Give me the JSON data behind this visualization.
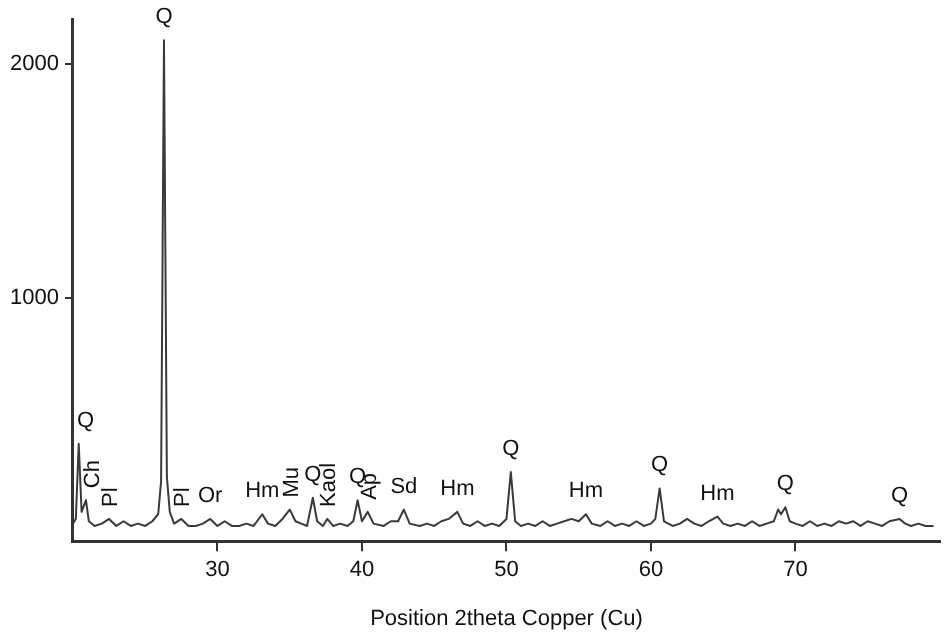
{
  "chart_data": {
    "type": "line",
    "xlabel": "Position 2theta Copper (Cu)",
    "xlim": [
      20,
      80
    ],
    "xticks": [
      30,
      40,
      50,
      60,
      70
    ],
    "ylim": [
      -35,
      2190
    ],
    "yticks": [
      1000,
      2000
    ],
    "grid": false,
    "legend": false,
    "marker": "none",
    "line_style": "solid",
    "series": [
      {
        "color": "#3a3a3a",
        "x": [
          20.0,
          20.2,
          20.4,
          20.6,
          20.9,
          21.1,
          21.5,
          22.0,
          22.5,
          23.0,
          23.5,
          24.0,
          24.5,
          25.0,
          25.5,
          25.9,
          26.1,
          26.3,
          26.5,
          26.7,
          27.0,
          27.5,
          28.0,
          28.5,
          29.0,
          29.5,
          30.0,
          30.5,
          31.0,
          31.5,
          32.0,
          32.5,
          33.1,
          33.5,
          34.0,
          34.5,
          35.0,
          35.4,
          35.8,
          36.2,
          36.6,
          36.9,
          37.3,
          37.6,
          38.0,
          38.5,
          39.0,
          39.4,
          39.7,
          40.0,
          40.4,
          40.8,
          41.5,
          42.0,
          42.5,
          42.9,
          43.3,
          44.0,
          44.5,
          45.0,
          45.5,
          46.0,
          46.6,
          47.0,
          47.5,
          48.0,
          48.5,
          49.0,
          49.5,
          50.0,
          50.3,
          50.6,
          51.0,
          51.5,
          52.0,
          52.5,
          53.0,
          53.5,
          54.0,
          54.5,
          55.0,
          55.5,
          55.9,
          56.5,
          57.0,
          57.5,
          58.0,
          58.5,
          59.0,
          59.5,
          60.0,
          60.3,
          60.6,
          60.9,
          61.5,
          62.0,
          62.5,
          63.0,
          63.5,
          64.0,
          64.6,
          65.0,
          65.5,
          66.0,
          66.5,
          67.0,
          67.5,
          68.0,
          68.5,
          68.8,
          69.0,
          69.3,
          69.6,
          70.0,
          70.5,
          71.0,
          71.5,
          72.0,
          72.5,
          73.0,
          73.5,
          74.0,
          74.5,
          75.0,
          75.5,
          76.0,
          76.5,
          77.2,
          77.6,
          78.0,
          78.5,
          79.0,
          79.5
        ],
        "values": [
          40,
          60,
          380,
          90,
          140,
          50,
          30,
          40,
          60,
          30,
          50,
          30,
          40,
          30,
          50,
          80,
          220,
          2100,
          240,
          90,
          40,
          60,
          30,
          30,
          40,
          60,
          30,
          50,
          30,
          30,
          40,
          30,
          80,
          40,
          30,
          60,
          100,
          50,
          40,
          30,
          150,
          50,
          30,
          60,
          30,
          40,
          30,
          50,
          140,
          50,
          90,
          40,
          30,
          50,
          50,
          100,
          40,
          30,
          40,
          30,
          50,
          60,
          90,
          40,
          30,
          50,
          30,
          40,
          30,
          60,
          260,
          50,
          30,
          40,
          30,
          50,
          30,
          40,
          50,
          60,
          50,
          80,
          40,
          30,
          50,
          30,
          40,
          30,
          50,
          30,
          40,
          60,
          190,
          50,
          30,
          40,
          60,
          40,
          30,
          50,
          70,
          40,
          30,
          40,
          30,
          50,
          30,
          40,
          50,
          100,
          80,
          110,
          50,
          40,
          30,
          50,
          30,
          40,
          30,
          50,
          40,
          50,
          30,
          50,
          40,
          30,
          50,
          60,
          40,
          30,
          40,
          30,
          30
        ]
      }
    ],
    "annotations": [
      {
        "text": "Q",
        "x": 20.4,
        "y": 380
      },
      {
        "text": "Ch",
        "x": 20.9,
        "y": 140
      },
      {
        "text": "Pl",
        "x": 22.5,
        "y": 60
      },
      {
        "text": "Q",
        "x": 26.3,
        "y": 2100
      },
      {
        "text": "Pl",
        "x": 27.5,
        "y": 60
      },
      {
        "text": "Or",
        "x": 29.5,
        "y": 60
      },
      {
        "text": "Hm",
        "x": 33.1,
        "y": 80
      },
      {
        "text": "Mu",
        "x": 35.0,
        "y": 100
      },
      {
        "text": "Q",
        "x": 36.6,
        "y": 150
      },
      {
        "text": "Kaol",
        "x": 37.6,
        "y": 60
      },
      {
        "text": "Q",
        "x": 39.7,
        "y": 140
      },
      {
        "text": "Ap",
        "x": 40.4,
        "y": 90
      },
      {
        "text": "Sd",
        "x": 42.9,
        "y": 100
      },
      {
        "text": "Hm",
        "x": 46.6,
        "y": 90
      },
      {
        "text": "Q",
        "x": 50.3,
        "y": 260
      },
      {
        "text": "Hm",
        "x": 55.5,
        "y": 80
      },
      {
        "text": "Q",
        "x": 60.6,
        "y": 190
      },
      {
        "text": "Hm",
        "x": 64.6,
        "y": 70
      },
      {
        "text": "Q",
        "x": 69.3,
        "y": 110
      },
      {
        "text": "Q",
        "x": 77.2,
        "y": 60
      }
    ]
  }
}
